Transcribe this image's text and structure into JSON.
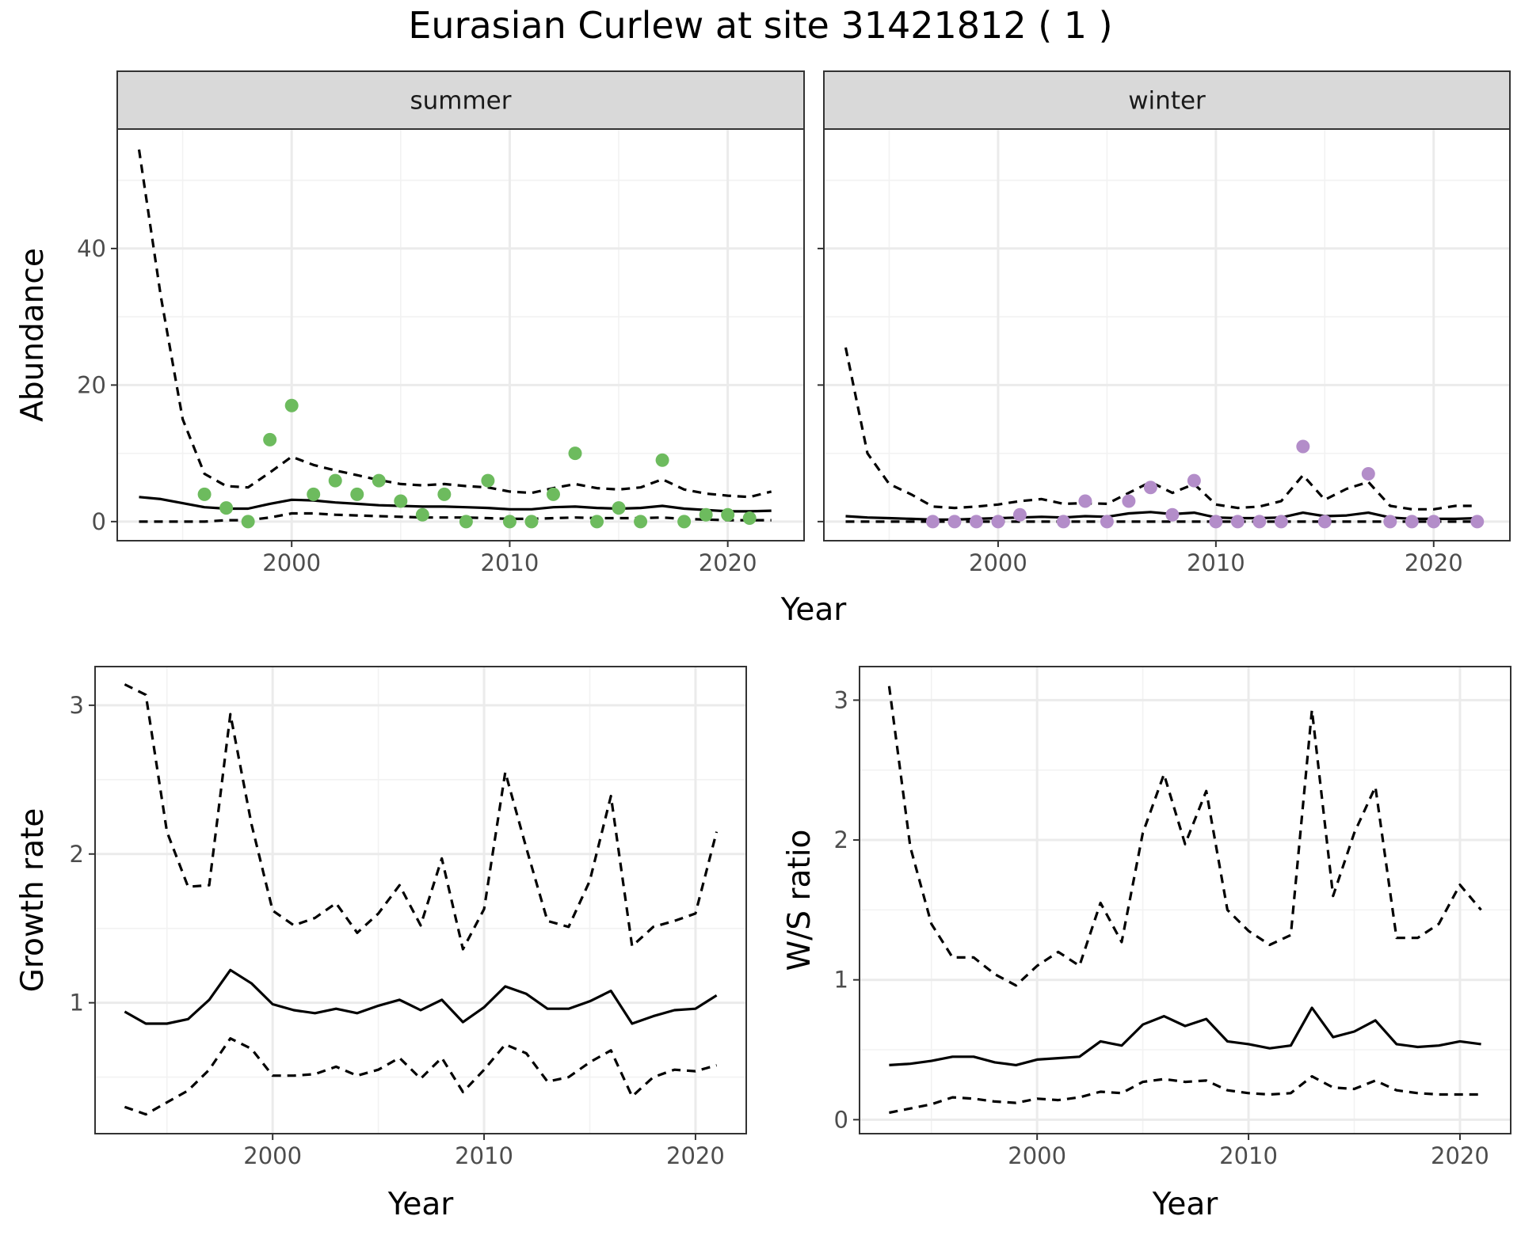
{
  "title": "Eurasian Curlew at site 31421812 ( 1 )",
  "colors": {
    "summer": "#6dbb5e",
    "winter": "#b38dc9",
    "line": "#000000"
  },
  "chart_data": [
    {
      "type": "line",
      "panel": "summer",
      "strip_label": "summer",
      "xlabel": "Year",
      "ylabel": "Abundance",
      "x_ticks": [
        2000,
        2010,
        2020
      ],
      "y_ticks": [
        0,
        20,
        40
      ],
      "xlim": [
        1992,
        2023.5
      ],
      "ylim": [
        -2.8,
        57.5
      ],
      "grid": true,
      "x": [
        1993,
        1994,
        1995,
        1996,
        1997,
        1998,
        1999,
        2000,
        2001,
        2002,
        2003,
        2004,
        2005,
        2006,
        2007,
        2008,
        2009,
        2010,
        2011,
        2012,
        2013,
        2014,
        2015,
        2016,
        2017,
        2018,
        2019,
        2020,
        2021,
        2022
      ],
      "series": [
        {
          "role": "mean",
          "values": [
            3.6,
            3.3,
            2.7,
            2.1,
            1.9,
            1.9,
            2.6,
            3.2,
            3.1,
            2.8,
            2.6,
            2.4,
            2.3,
            2.2,
            2.2,
            2.1,
            2.0,
            1.8,
            1.8,
            2.1,
            2.2,
            2.0,
            1.9,
            2.0,
            2.3,
            1.9,
            1.7,
            1.5,
            1.5,
            1.6
          ]
        },
        {
          "role": "upper",
          "values": [
            54.5,
            33,
            15,
            7,
            5.2,
            5,
            7.2,
            9.5,
            8.3,
            7.5,
            6.8,
            6.1,
            5.5,
            5.3,
            5.5,
            5.2,
            5.0,
            4.4,
            4.2,
            4.9,
            5.5,
            4.9,
            4.7,
            5.0,
            6.2,
            4.7,
            4.1,
            3.8,
            3.6,
            4.4
          ]
        },
        {
          "role": "lower",
          "values": [
            0,
            0,
            0,
            0,
            0.2,
            0.2,
            0.6,
            1.2,
            1.2,
            1.0,
            0.9,
            0.8,
            0.7,
            0.6,
            0.6,
            0.6,
            0.5,
            0.4,
            0.4,
            0.5,
            0.6,
            0.5,
            0.5,
            0.5,
            0.6,
            0.4,
            0.3,
            0.2,
            0.2,
            0.2
          ]
        }
      ],
      "observed": {
        "x": [
          1996,
          1997,
          1998,
          1999,
          2000,
          2001,
          2002,
          2003,
          2004,
          2005,
          2006,
          2007,
          2008,
          2009,
          2010,
          2011,
          2012,
          2013,
          2014,
          2015,
          2016,
          2017,
          2018,
          2019,
          2020,
          2021
        ],
        "y": [
          4,
          2,
          0,
          12,
          17,
          4,
          6,
          4,
          6,
          3,
          1,
          4,
          0,
          6,
          0,
          0,
          4,
          10,
          0,
          2,
          0,
          9,
          0,
          1,
          1,
          0.5
        ]
      }
    },
    {
      "type": "line",
      "panel": "winter",
      "strip_label": "winter",
      "xlabel": "Year",
      "ylabel": "",
      "x_ticks": [
        2000,
        2010,
        2020
      ],
      "y_ticks": [
        0,
        20,
        40
      ],
      "xlim": [
        1992,
        2023.5
      ],
      "ylim": [
        -2.8,
        57.5
      ],
      "grid": true,
      "x": [
        1993,
        1994,
        1995,
        1996,
        1997,
        1998,
        1999,
        2000,
        2001,
        2002,
        2003,
        2004,
        2005,
        2006,
        2007,
        2008,
        2009,
        2010,
        2011,
        2012,
        2013,
        2014,
        2015,
        2016,
        2017,
        2018,
        2019,
        2020,
        2021,
        2022
      ],
      "series": [
        {
          "role": "mean",
          "values": [
            0.8,
            0.6,
            0.5,
            0.4,
            0.3,
            0.3,
            0.4,
            0.5,
            0.6,
            0.7,
            0.6,
            0.8,
            0.7,
            1.2,
            1.4,
            1.1,
            1.3,
            0.6,
            0.5,
            0.5,
            0.6,
            1.3,
            0.8,
            0.9,
            1.3,
            0.6,
            0.4,
            0.4,
            0.4,
            0.5
          ]
        },
        {
          "role": "upper",
          "values": [
            25.5,
            10,
            5.5,
            4,
            2.2,
            2,
            2.2,
            2.5,
            3,
            3.3,
            2.6,
            2.7,
            2.6,
            4.2,
            5.8,
            4.2,
            5.5,
            2.5,
            2,
            2.2,
            3,
            6.8,
            3.2,
            4.8,
            5.8,
            2.3,
            1.8,
            1.8,
            2.3,
            2.3
          ]
        },
        {
          "role": "lower",
          "values": [
            0,
            0,
            0,
            0,
            0,
            0,
            0,
            0,
            0,
            0,
            0,
            0,
            0,
            0,
            0,
            0,
            0,
            0,
            0,
            0,
            0,
            0,
            0,
            0,
            0,
            0,
            0,
            0,
            0,
            0
          ]
        }
      ],
      "observed": {
        "x": [
          1997,
          1998,
          1999,
          2000,
          2001,
          2003,
          2004,
          2005,
          2006,
          2007,
          2008,
          2009,
          2010,
          2011,
          2012,
          2013,
          2014,
          2015,
          2017,
          2018,
          2019,
          2020,
          2022
        ],
        "y": [
          0,
          0,
          0,
          0,
          1,
          0,
          3,
          0,
          3,
          5,
          1,
          6,
          0,
          0,
          0,
          0,
          11,
          0,
          7,
          0,
          0,
          0,
          0
        ]
      }
    },
    {
      "type": "line",
      "panel": "growth",
      "xlabel": "Year",
      "ylabel": "Growth rate",
      "x_ticks": [
        2000,
        2010,
        2020
      ],
      "y_ticks": [
        1,
        2,
        3
      ],
      "xlim": [
        1991.6,
        2022.4
      ],
      "ylim": [
        0.12,
        3.26
      ],
      "grid": true,
      "x": [
        1993,
        1994,
        1995,
        1996,
        1997,
        1998,
        1999,
        2000,
        2001,
        2002,
        2003,
        2004,
        2005,
        2006,
        2007,
        2008,
        2009,
        2010,
        2011,
        2012,
        2013,
        2014,
        2015,
        2016,
        2017,
        2018,
        2019,
        2020,
        2021
      ],
      "series": [
        {
          "role": "mean",
          "values": [
            0.94,
            0.86,
            0.86,
            0.89,
            1.02,
            1.22,
            1.13,
            0.99,
            0.95,
            0.93,
            0.96,
            0.93,
            0.98,
            1.02,
            0.95,
            1.02,
            0.87,
            0.97,
            1.11,
            1.06,
            0.96,
            0.96,
            1.01,
            1.08,
            0.86,
            0.91,
            0.95,
            0.96,
            1.05
          ]
        },
        {
          "role": "upper",
          "values": [
            3.14,
            3.07,
            2.15,
            1.78,
            1.79,
            2.94,
            2.2,
            1.62,
            1.52,
            1.57,
            1.67,
            1.47,
            1.6,
            1.79,
            1.52,
            1.97,
            1.36,
            1.63,
            2.55,
            2.04,
            1.55,
            1.51,
            1.82,
            2.39,
            1.38,
            1.51,
            1.55,
            1.6,
            2.15
          ]
        },
        {
          "role": "lower",
          "values": [
            0.3,
            0.25,
            0.33,
            0.41,
            0.55,
            0.76,
            0.69,
            0.51,
            0.51,
            0.52,
            0.57,
            0.51,
            0.55,
            0.63,
            0.49,
            0.63,
            0.4,
            0.55,
            0.72,
            0.66,
            0.47,
            0.5,
            0.6,
            0.68,
            0.37,
            0.5,
            0.55,
            0.54,
            0.58
          ]
        }
      ]
    },
    {
      "type": "line",
      "panel": "ratio",
      "xlabel": "Year",
      "ylabel": "W/S ratio",
      "x_ticks": [
        2000,
        2010,
        2020
      ],
      "y_ticks": [
        0,
        1,
        2,
        3
      ],
      "xlim": [
        1991.6,
        2022.4
      ],
      "ylim": [
        -0.1,
        3.24
      ],
      "grid": true,
      "x": [
        1993,
        1994,
        1995,
        1996,
        1997,
        1998,
        1999,
        2000,
        2001,
        2002,
        2003,
        2004,
        2005,
        2006,
        2007,
        2008,
        2009,
        2010,
        2011,
        2012,
        2013,
        2014,
        2015,
        2016,
        2017,
        2018,
        2019,
        2020,
        2021
      ],
      "series": [
        {
          "role": "mean",
          "values": [
            0.39,
            0.4,
            0.42,
            0.45,
            0.45,
            0.41,
            0.39,
            0.43,
            0.44,
            0.45,
            0.56,
            0.53,
            0.68,
            0.74,
            0.67,
            0.72,
            0.56,
            0.54,
            0.51,
            0.53,
            0.8,
            0.59,
            0.63,
            0.71,
            0.54,
            0.52,
            0.53,
            0.56,
            0.54
          ]
        },
        {
          "role": "upper",
          "values": [
            3.1,
            1.95,
            1.4,
            1.16,
            1.16,
            1.04,
            0.96,
            1.1,
            1.2,
            1.1,
            1.55,
            1.27,
            2.05,
            2.47,
            1.97,
            2.35,
            1.5,
            1.35,
            1.25,
            1.32,
            2.93,
            1.6,
            2.05,
            2.38,
            1.3,
            1.3,
            1.4,
            1.68,
            1.5
          ]
        },
        {
          "role": "lower",
          "values": [
            0.05,
            0.08,
            0.11,
            0.16,
            0.15,
            0.13,
            0.12,
            0.15,
            0.14,
            0.16,
            0.2,
            0.19,
            0.27,
            0.29,
            0.27,
            0.28,
            0.21,
            0.19,
            0.18,
            0.19,
            0.31,
            0.23,
            0.22,
            0.28,
            0.21,
            0.19,
            0.18,
            0.18,
            0.18
          ]
        }
      ]
    }
  ]
}
